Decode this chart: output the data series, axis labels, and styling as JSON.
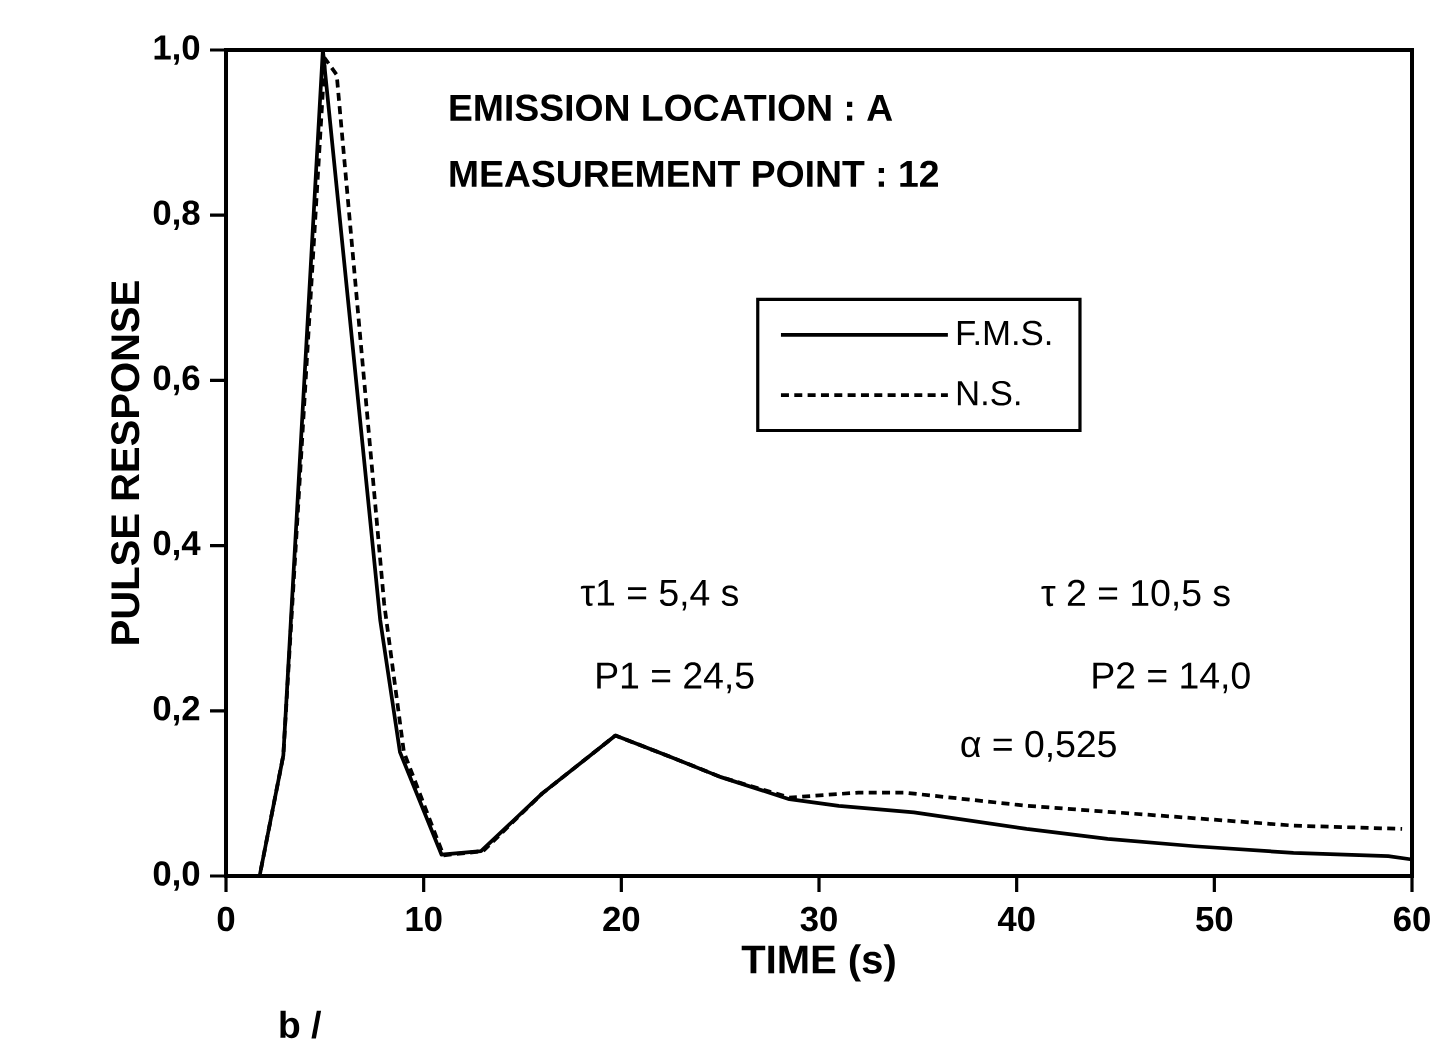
{
  "chart_data": {
    "type": "line",
    "xlabel": "TIME (s)",
    "ylabel": "PULSE RESPONSE",
    "xlim": [
      0,
      60
    ],
    "ylim": [
      0,
      1.0
    ],
    "xticks": [
      0,
      10,
      20,
      30,
      40,
      50,
      60
    ],
    "yticks": [
      {
        "value": 0,
        "label": "0,0"
      },
      {
        "value": 0.2,
        "label": "0,2"
      },
      {
        "value": 0.4,
        "label": "0,4"
      },
      {
        "value": 0.6,
        "label": "0,6"
      },
      {
        "value": 0.8,
        "label": "0,8"
      },
      {
        "value": 1.0,
        "label": "1,0"
      }
    ],
    "grid": false,
    "legend": "top right",
    "series": [
      {
        "name": "F.M.S.",
        "color": "#000000",
        "line_style": "solid",
        "x": [
          0,
          1.7,
          2.9,
          4.9,
          7.8,
          8.8,
          10.9,
          12.9,
          16,
          19.7,
          22.4,
          25,
          28.5,
          31,
          34.8,
          40.5,
          44.6,
          49,
          54,
          58.8,
          60
        ],
        "values": [
          0,
          0,
          0.146,
          1.0,
          0.31,
          0.15,
          0.026,
          0.03,
          0.1,
          0.17,
          0.145,
          0.12,
          0.093,
          0.085,
          0.077,
          0.057,
          0.045,
          0.036,
          0.028,
          0.024,
          0.02
        ]
      },
      {
        "name": "N.S.",
        "color": "#000000",
        "line_style": "dashed",
        "x": [
          0,
          1.7,
          2.9,
          5.0,
          5.6,
          8.0,
          9.0,
          11.0,
          13.0,
          16,
          19.7,
          22.4,
          25,
          28.5,
          32,
          34.3,
          40.5,
          47.3,
          54,
          59.5
        ],
        "values": [
          0,
          0,
          0.146,
          0.99,
          0.97,
          0.33,
          0.15,
          0.025,
          0.03,
          0.1,
          0.17,
          0.145,
          0.12,
          0.095,
          0.101,
          0.101,
          0.085,
          0.073,
          0.061,
          0.057
        ]
      }
    ],
    "annotations": [
      "EMISSION LOCATION : A",
      "MEASUREMENT POINT : 12",
      "τ1 = 5,4 s",
      "τ 2 = 10,5 s",
      "P1 = 24,5",
      "P2 = 14,0",
      "α = 0,525",
      "b /"
    ]
  }
}
